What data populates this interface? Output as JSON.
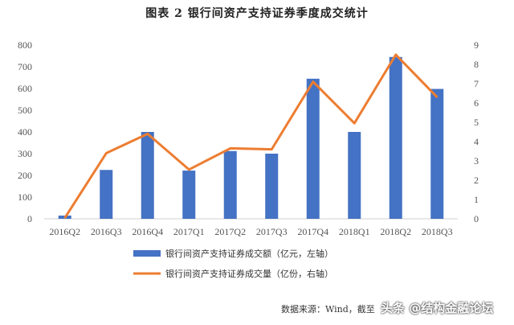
{
  "chart_data": {
    "type": "bar+line",
    "title": "图表 2 银行间资产支持证券季度成交统计",
    "categories": [
      "2016Q2",
      "2016Q3",
      "2016Q4",
      "2017Q1",
      "2017Q2",
      "2017Q3",
      "2017Q4",
      "2018Q1",
      "2018Q2",
      "2018Q3"
    ],
    "series": [
      {
        "name": "银行间资产支持证券成交额（亿元，左轴）",
        "type": "bar",
        "axis": "left",
        "color": "#4472c4",
        "values": [
          15,
          225,
          400,
          222,
          312,
          300,
          645,
          400,
          745,
          598
        ]
      },
      {
        "name": "银行间资产支持证券成交量（亿份，右轴）",
        "type": "line",
        "axis": "right",
        "color": "#ed7d31",
        "values": [
          0.05,
          3.4,
          4.4,
          2.55,
          3.65,
          3.6,
          7.1,
          4.95,
          8.5,
          6.3
        ]
      }
    ],
    "left_axis": {
      "ylim": [
        0,
        800
      ],
      "ticks": [
        0,
        100,
        200,
        300,
        400,
        500,
        600,
        700,
        800
      ]
    },
    "right_axis": {
      "ylim": [
        0,
        9
      ],
      "ticks": [
        0,
        1,
        2,
        3,
        4,
        5,
        6,
        7,
        8,
        9
      ]
    },
    "grid": false,
    "legend_position": "bottom-center"
  },
  "source_note": "数据来源：Wind，截至",
  "watermark": "头条 @结构金融论坛"
}
